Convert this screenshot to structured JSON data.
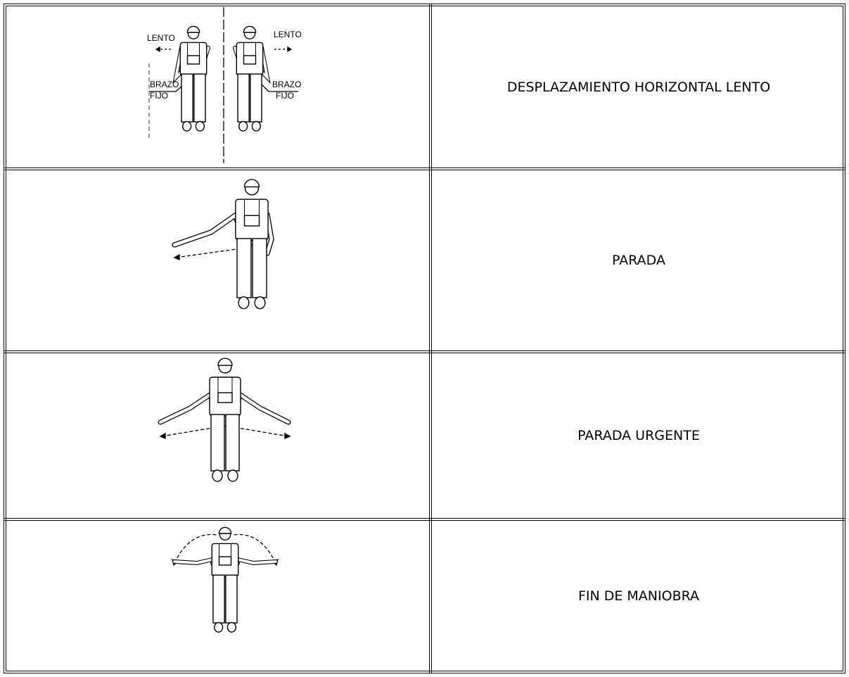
{
  "table": {
    "rows": [
      {
        "annotations": [
          "LENTO",
          "BRAZO",
          "FIJO",
          "LENTO",
          "BRAZO",
          "FIJO"
        ],
        "label": "DESPLAZAMIENTO HORIZONTAL LENTO"
      },
      {
        "label": "PARADA"
      },
      {
        "label": "PARADA URGENTE"
      },
      {
        "label": "FIN DE MANIOBRA"
      }
    ]
  }
}
